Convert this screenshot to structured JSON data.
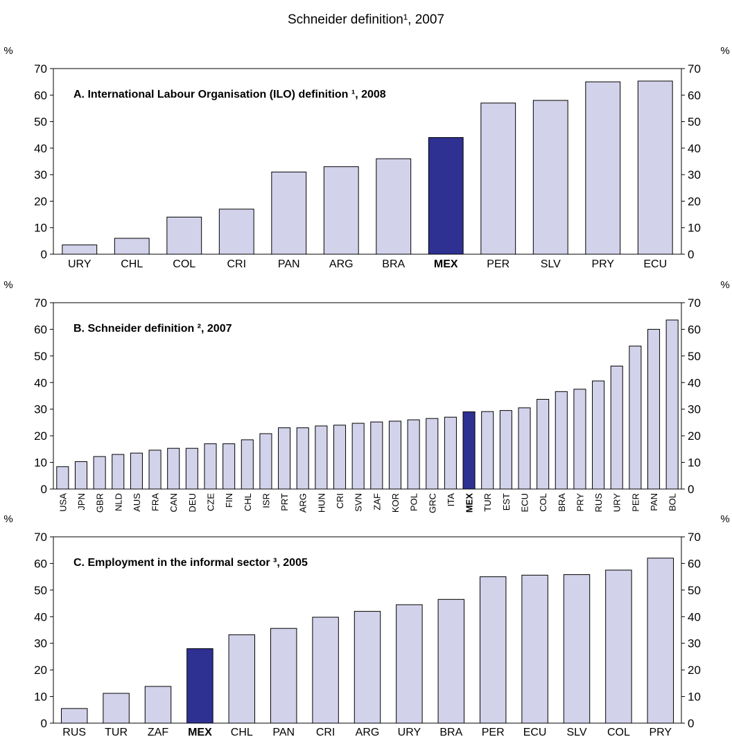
{
  "page_title": "Schneider definition¹, 2007",
  "unit_label": "%",
  "colors": {
    "bar": "#d2d2eb",
    "highlight": "#2e3192",
    "stroke": "#000000"
  },
  "chart_data": [
    {
      "type": "bar",
      "title": "A. International Labour Organisation (ILO) definition ¹, 2008",
      "ylabel": "%",
      "ylim": [
        0,
        70
      ],
      "yticks": [
        0,
        10,
        20,
        30,
        40,
        50,
        60,
        70
      ],
      "highlight": "MEX",
      "categories": [
        "URY",
        "CHL",
        "COL",
        "CRI",
        "PAN",
        "ARG",
        "BRA",
        "MEX",
        "PER",
        "SLV",
        "PRY",
        "ECU"
      ],
      "values": [
        3.5,
        6,
        14,
        17,
        31,
        33,
        36,
        44,
        57,
        58,
        65,
        65.3
      ]
    },
    {
      "type": "bar",
      "title": "B. Schneider definition ², 2007",
      "ylabel": "%",
      "ylim": [
        0,
        70
      ],
      "yticks": [
        0,
        10,
        20,
        30,
        40,
        50,
        60,
        70
      ],
      "highlight": "MEX",
      "categories": [
        "USA",
        "JPN",
        "GBR",
        "NLD",
        "AUS",
        "FRA",
        "CAN",
        "DEU",
        "CZE",
        "FIN",
        "CHL",
        "ISR",
        "PRT",
        "ARG",
        "HUN",
        "CRI",
        "SVN",
        "ZAF",
        "KOR",
        "POL",
        "GRC",
        "ITA",
        "MEX",
        "TUR",
        "EST",
        "ECU",
        "COL",
        "BRA",
        "PRY",
        "RUS",
        "URY",
        "PER",
        "PAN",
        "BOL"
      ],
      "values": [
        8.4,
        10.3,
        12.2,
        13.0,
        13.5,
        14.6,
        15.3,
        15.3,
        17.0,
        17.0,
        18.5,
        20.8,
        23.0,
        23.0,
        23.7,
        24.0,
        24.7,
        25.2,
        25.5,
        26.0,
        26.5,
        27.0,
        29.0,
        29.1,
        29.5,
        30.5,
        33.7,
        36.6,
        37.5,
        40.6,
        46.2,
        53.7,
        60.0,
        63.5
      ]
    },
    {
      "type": "bar",
      "title": "C. Employment in the informal sector ³, 2005",
      "ylabel": "%",
      "ylim": [
        0,
        70
      ],
      "yticks": [
        0,
        10,
        20,
        30,
        40,
        50,
        60,
        70
      ],
      "highlight": "MEX",
      "categories": [
        "RUS",
        "TUR",
        "ZAF",
        "MEX",
        "CHL",
        "PAN",
        "CRI",
        "ARG",
        "URY",
        "BRA",
        "PER",
        "ECU",
        "SLV",
        "COL",
        "PRY"
      ],
      "values": [
        5.5,
        11.2,
        13.8,
        28.0,
        33.2,
        35.6,
        39.8,
        42.0,
        44.5,
        46.5,
        55.0,
        55.6,
        55.8,
        57.5,
        62.0
      ]
    }
  ]
}
